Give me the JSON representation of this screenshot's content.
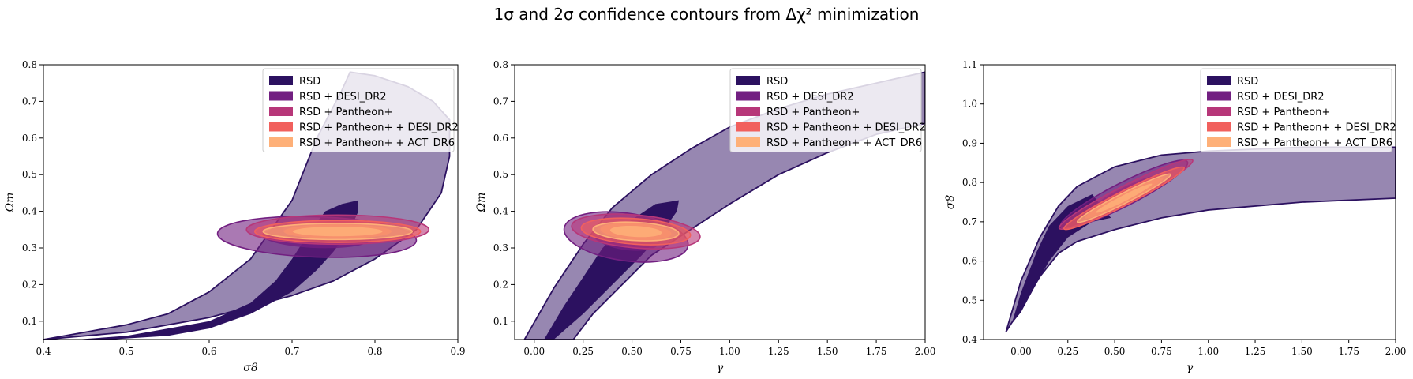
{
  "figure": {
    "title": "1σ and 2σ confidence contours from Δχ² minimization"
  },
  "colors": {
    "RSD": "#2c1160",
    "RSD + DESI_DR2": "#721f81",
    "RSD + Pantheon+": "#b73779",
    "RSD + Pantheon+ + DESI_DR2": "#f1605d",
    "RSD + Pantheon+ + ACT_DR6": "#feb078",
    "band_fill": "#8c7aa8"
  },
  "chart_data": [
    {
      "type": "contour",
      "xlabel": "σ8",
      "ylabel": "Ωm",
      "xlim": [
        0.4,
        0.9
      ],
      "ylim": [
        0.05,
        0.8
      ],
      "xticks": [
        "0.4",
        "0.5",
        "0.6",
        "0.7",
        "0.8",
        "0.9"
      ],
      "yticks": [
        "0.1",
        "0.2",
        "0.3",
        "0.4",
        "0.5",
        "0.6",
        "0.7",
        "0.8"
      ],
      "legend": [
        "RSD",
        "RSD + DESI_DR2",
        "RSD + Pantheon+",
        "RSD + Pantheon+ + DESI_DR2",
        "RSD + Pantheon+ + ACT_DR6"
      ],
      "legend_position": "upper-right",
      "bands": [
        {
          "series": "RSD",
          "level": "2σ",
          "lower": [
            [
              0.4,
              0.05
            ],
            [
              0.5,
              0.07
            ],
            [
              0.6,
              0.11
            ],
            [
              0.7,
              0.17
            ],
            [
              0.75,
              0.21
            ],
            [
              0.8,
              0.27
            ],
            [
              0.85,
              0.35
            ],
            [
              0.88,
              0.45
            ],
            [
              0.89,
              0.55
            ],
            [
              0.89,
              0.65
            ]
          ],
          "upper": [
            [
              0.4,
              0.05
            ],
            [
              0.45,
              0.07
            ],
            [
              0.5,
              0.09
            ],
            [
              0.55,
              0.12
            ],
            [
              0.6,
              0.18
            ],
            [
              0.65,
              0.27
            ],
            [
              0.7,
              0.43
            ],
            [
              0.73,
              0.6
            ],
            [
              0.76,
              0.73
            ],
            [
              0.77,
              0.78
            ]
          ],
          "top": [
            [
              0.77,
              0.78
            ],
            [
              0.8,
              0.77
            ],
            [
              0.84,
              0.74
            ],
            [
              0.87,
              0.7
            ],
            [
              0.89,
              0.65
            ]
          ]
        },
        {
          "series": "RSD",
          "level": "1σ",
          "lower": [
            [
              0.48,
              0.05
            ],
            [
              0.55,
              0.06
            ],
            [
              0.6,
              0.08
            ],
            [
              0.65,
              0.12
            ],
            [
              0.7,
              0.18
            ],
            [
              0.73,
              0.24
            ],
            [
              0.75,
              0.29
            ],
            [
              0.77,
              0.35
            ],
            [
              0.78,
              0.4
            ],
            [
              0.78,
              0.43
            ]
          ],
          "upper": [
            [
              0.44,
              0.05
            ],
            [
              0.5,
              0.06
            ],
            [
              0.55,
              0.08
            ],
            [
              0.6,
              0.1
            ],
            [
              0.65,
              0.15
            ],
            [
              0.68,
              0.21
            ],
            [
              0.7,
              0.27
            ],
            [
              0.72,
              0.34
            ],
            [
              0.74,
              0.4
            ],
            [
              0.76,
              0.42
            ],
            [
              0.78,
              0.43
            ]
          ]
        }
      ],
      "ellipses": [
        {
          "series": "RSD + DESI_DR2",
          "center": [
            0.73,
            0.33
          ],
          "x_halfwidth": 0.12,
          "y_halfwidth": 0.055,
          "angle_deg": 2,
          "inner_scale": 0.55
        },
        {
          "series": "RSD + Pantheon+",
          "center": [
            0.755,
            0.35
          ],
          "x_halfwidth": 0.11,
          "y_halfwidth": 0.04,
          "angle_deg": 0,
          "inner_scale": 0.6
        },
        {
          "series": "RSD + Pantheon+ + DESI_DR2",
          "center": [
            0.755,
            0.345
          ],
          "x_halfwidth": 0.1,
          "y_halfwidth": 0.03,
          "angle_deg": 0,
          "inner_scale": 0.65
        },
        {
          "series": "RSD + Pantheon+ + ACT_DR6",
          "center": [
            0.755,
            0.345
          ],
          "x_halfwidth": 0.09,
          "y_halfwidth": 0.022,
          "angle_deg": 0,
          "inner_scale": 0.6
        }
      ]
    },
    {
      "type": "contour",
      "xlabel": "γ",
      "ylabel": "Ωm",
      "xlim": [
        -0.1,
        2.0
      ],
      "ylim": [
        0.05,
        0.8
      ],
      "xticks": [
        "0.00",
        "0.25",
        "0.50",
        "0.75",
        "1.00",
        "1.25",
        "1.50",
        "1.75",
        "2.00"
      ],
      "yticks": [
        "0.1",
        "0.2",
        "0.3",
        "0.4",
        "0.5",
        "0.6",
        "0.7",
        "0.8"
      ],
      "legend": [
        "RSD",
        "RSD + DESI_DR2",
        "RSD + Pantheon+",
        "RSD + Pantheon+ + DESI_DR2",
        "RSD + Pantheon+ + ACT_DR6"
      ],
      "legend_position": "upper-right",
      "bands": [
        {
          "series": "RSD",
          "level": "2σ",
          "lower": [
            [
              0.2,
              0.05
            ],
            [
              0.3,
              0.12
            ],
            [
              0.45,
              0.2
            ],
            [
              0.6,
              0.28
            ],
            [
              0.8,
              0.35
            ],
            [
              1.0,
              0.42
            ],
            [
              1.25,
              0.5
            ],
            [
              1.5,
              0.56
            ],
            [
              1.75,
              0.61
            ],
            [
              2.0,
              0.64
            ]
          ],
          "upper": [
            [
              -0.05,
              0.05
            ],
            [
              0.1,
              0.19
            ],
            [
              0.25,
              0.31
            ],
            [
              0.4,
              0.41
            ],
            [
              0.6,
              0.5
            ],
            [
              0.8,
              0.57
            ],
            [
              1.0,
              0.63
            ],
            [
              1.25,
              0.68
            ],
            [
              1.5,
              0.72
            ],
            [
              1.75,
              0.75
            ],
            [
              2.0,
              0.78
            ]
          ]
        },
        {
          "series": "RSD",
          "level": "1σ",
          "lower": [
            [
              0.1,
              0.05
            ],
            [
              0.25,
              0.12
            ],
            [
              0.4,
              0.2
            ],
            [
              0.55,
              0.28
            ],
            [
              0.65,
              0.34
            ],
            [
              0.73,
              0.4
            ],
            [
              0.74,
              0.43
            ]
          ],
          "upper": [
            [
              0.05,
              0.05
            ],
            [
              0.15,
              0.14
            ],
            [
              0.25,
              0.22
            ],
            [
              0.35,
              0.3
            ],
            [
              0.48,
              0.37
            ],
            [
              0.62,
              0.42
            ],
            [
              0.74,
              0.43
            ]
          ]
        }
      ],
      "ellipses": [
        {
          "series": "RSD + DESI_DR2",
          "center": [
            0.47,
            0.33
          ],
          "x_halfwidth": 0.32,
          "y_halfwidth": 0.065,
          "angle_deg": 8,
          "inner_scale": 0.55
        },
        {
          "series": "RSD + Pantheon+",
          "center": [
            0.52,
            0.345
          ],
          "x_halfwidth": 0.33,
          "y_halfwidth": 0.045,
          "angle_deg": 5,
          "inner_scale": 0.6
        },
        {
          "series": "RSD + Pantheon+ + DESI_DR2",
          "center": [
            0.52,
            0.345
          ],
          "x_halfwidth": 0.28,
          "y_halfwidth": 0.035,
          "angle_deg": 4,
          "inner_scale": 0.65
        },
        {
          "series": "RSD + Pantheon+ + ACT_DR6",
          "center": [
            0.52,
            0.345
          ],
          "x_halfwidth": 0.22,
          "y_halfwidth": 0.025,
          "angle_deg": 3,
          "inner_scale": 0.6
        }
      ]
    },
    {
      "type": "contour",
      "xlabel": "γ",
      "ylabel": "σ8",
      "xlim": [
        -0.2,
        2.0
      ],
      "ylim": [
        0.4,
        1.1
      ],
      "xticks": [
        "0.00",
        "0.25",
        "0.50",
        "0.75",
        "1.00",
        "1.25",
        "1.50",
        "1.75",
        "2.00"
      ],
      "yticks": [
        "0.4",
        "0.5",
        "0.6",
        "0.7",
        "0.8",
        "0.9",
        "1.0",
        "1.1"
      ],
      "legend": [
        "RSD",
        "RSD + DESI_DR2",
        "RSD + Pantheon+",
        "RSD + Pantheon+ + DESI_DR2",
        "RSD + Pantheon+ + ACT_DR6"
      ],
      "legend_position": "upper-right",
      "bands": [
        {
          "series": "RSD",
          "level": "2σ",
          "lower": [
            [
              -0.08,
              0.42
            ],
            [
              0.0,
              0.48
            ],
            [
              0.1,
              0.56
            ],
            [
              0.2,
              0.62
            ],
            [
              0.3,
              0.65
            ],
            [
              0.5,
              0.68
            ],
            [
              0.75,
              0.71
            ],
            [
              1.0,
              0.73
            ],
            [
              1.5,
              0.75
            ],
            [
              2.0,
              0.76
            ]
          ],
          "upper": [
            [
              -0.08,
              0.42
            ],
            [
              0.0,
              0.55
            ],
            [
              0.1,
              0.66
            ],
            [
              0.2,
              0.74
            ],
            [
              0.3,
              0.79
            ],
            [
              0.5,
              0.84
            ],
            [
              0.75,
              0.87
            ],
            [
              1.0,
              0.88
            ],
            [
              1.5,
              0.89
            ],
            [
              2.0,
              0.89
            ]
          ]
        },
        {
          "series": "RSD",
          "level": "1σ",
          "lower": [
            [
              -0.05,
              0.44
            ],
            [
              0.0,
              0.47
            ],
            [
              0.08,
              0.54
            ],
            [
              0.15,
              0.6
            ],
            [
              0.25,
              0.66
            ],
            [
              0.38,
              0.7
            ],
            [
              0.48,
              0.71
            ]
          ],
          "upper": [
            [
              -0.05,
              0.44
            ],
            [
              0.0,
              0.52
            ],
            [
              0.08,
              0.62
            ],
            [
              0.15,
              0.69
            ],
            [
              0.25,
              0.74
            ],
            [
              0.38,
              0.77
            ],
            [
              0.48,
              0.71
            ]
          ]
        }
      ],
      "ellipses": [
        {
          "series": "RSD + DESI_DR2",
          "center": [
            0.55,
            0.77
          ],
          "x_halfwidth": 0.38,
          "y_halfwidth": 0.03,
          "angle_deg": -27,
          "inner_scale": 0.55
        },
        {
          "series": "RSD + Pantheon+",
          "center": [
            0.56,
            0.77
          ],
          "x_halfwidth": 0.4,
          "y_halfwidth": 0.022,
          "angle_deg": -27,
          "inner_scale": 0.6
        },
        {
          "series": "RSD + Pantheon+ + DESI_DR2",
          "center": [
            0.55,
            0.76
          ],
          "x_halfwidth": 0.36,
          "y_halfwidth": 0.018,
          "angle_deg": -27,
          "inner_scale": 0.65
        },
        {
          "series": "RSD + Pantheon+ + ACT_DR6",
          "center": [
            0.55,
            0.76
          ],
          "x_halfwidth": 0.28,
          "y_halfwidth": 0.013,
          "angle_deg": -27,
          "inner_scale": 0.6
        }
      ]
    }
  ]
}
